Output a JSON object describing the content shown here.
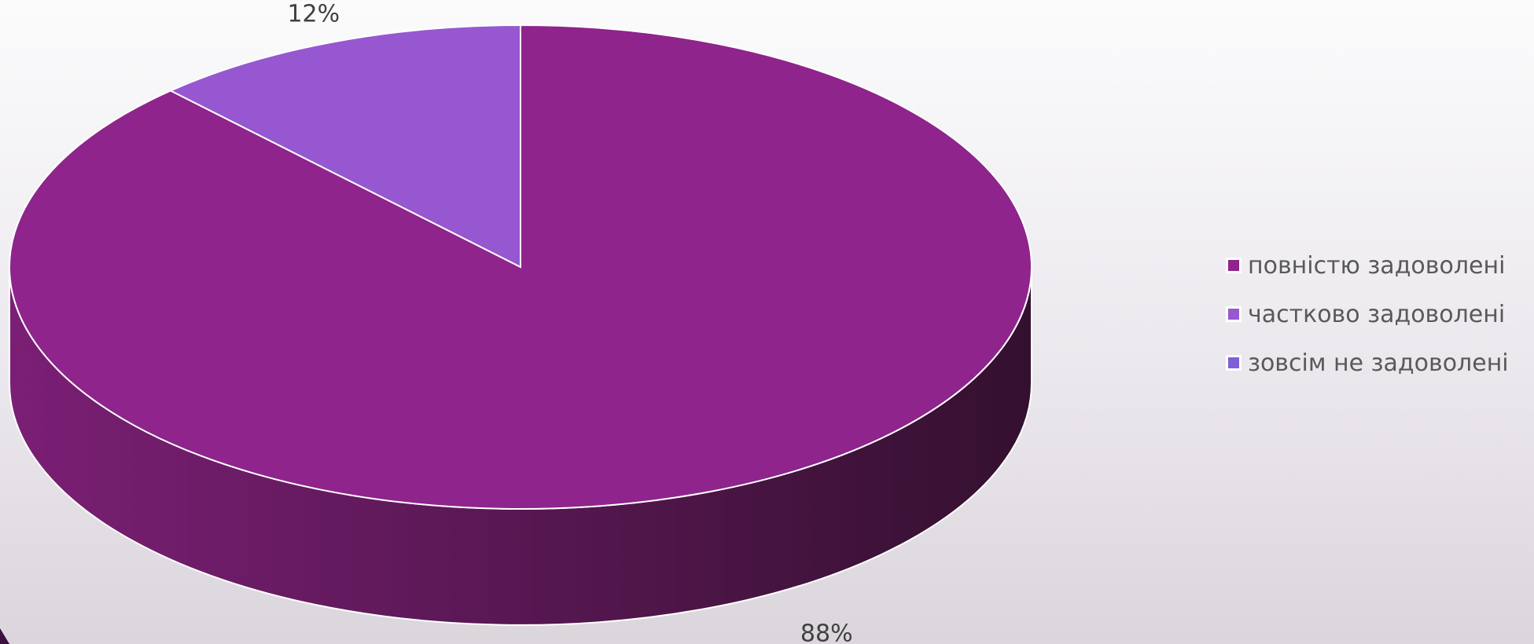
{
  "chart_data": {
    "type": "pie",
    "title": "",
    "categories": [
      "повністю задоволені",
      "частково задоволені",
      "зовсім не задоволені"
    ],
    "values": [
      88,
      12,
      0
    ],
    "data_labels": [
      "88%",
      "12%",
      ""
    ],
    "colors": [
      "#8e248c",
      "#9757d1",
      "#7e5fd6"
    ],
    "side_color_light": "#7b1f75",
    "side_color_dark": "#34102f",
    "three_d": true,
    "start_angle_deg": 0,
    "legend_position": "right"
  },
  "legend": {
    "items": [
      {
        "label": "повністю задоволені",
        "color": "#8e248c"
      },
      {
        "label": "частково задоволені",
        "color": "#9757d1"
      },
      {
        "label": "зовсім не задоволені",
        "color": "#7e5fd6"
      }
    ]
  }
}
